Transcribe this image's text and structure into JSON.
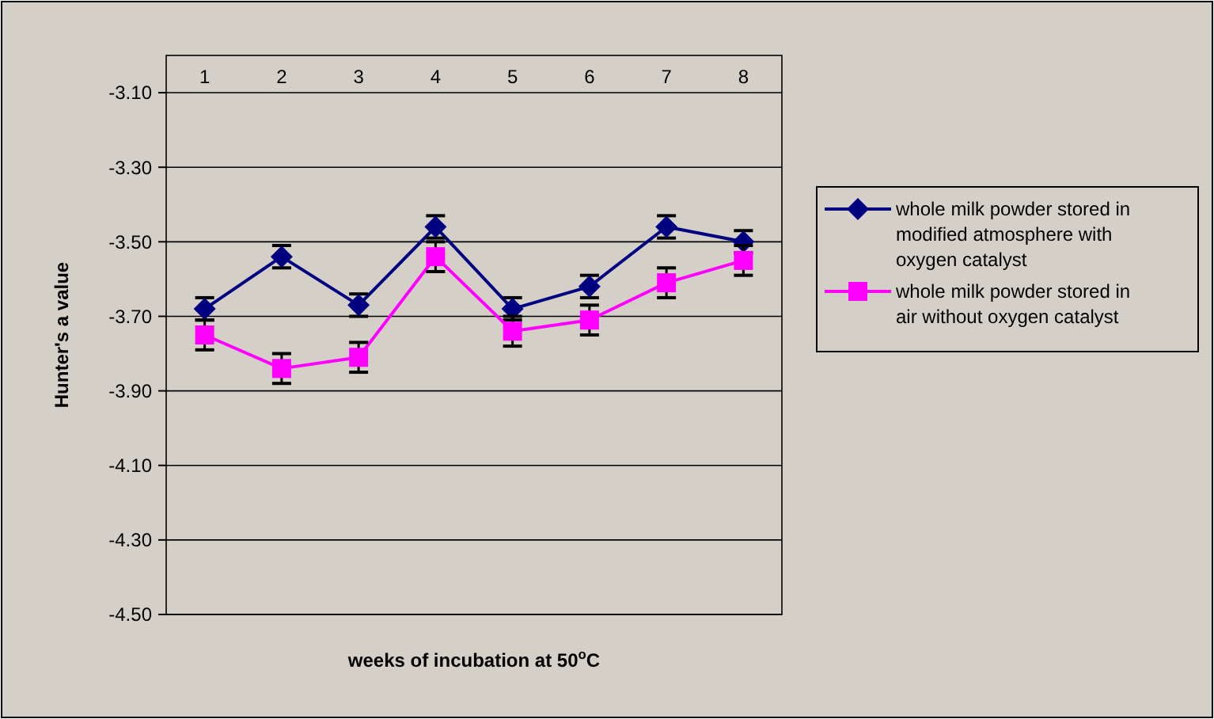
{
  "chart_data": {
    "type": "line",
    "xlabel": "weeks of incubation at 50$^{o}$C",
    "ylabel": "Hunter's a value",
    "categories": [
      "1",
      "2",
      "3",
      "4",
      "5",
      "6",
      "7",
      "8"
    ],
    "series": [
      {
        "name": "whole milk powder stored in modified atmosphere with oxygen catalyst",
        "color": "#000080",
        "marker": "diamond",
        "values": [
          -3.68,
          -3.54,
          -3.67,
          -3.46,
          -3.68,
          -3.62,
          -3.46,
          -3.5
        ],
        "errors": [
          0.03,
          0.03,
          0.03,
          0.03,
          0.03,
          0.03,
          0.03,
          0.03
        ]
      },
      {
        "name": "whole milk powder stored in air without oxygen catalyst",
        "color": "#ff00ff",
        "marker": "square",
        "values": [
          -3.75,
          -3.84,
          -3.81,
          -3.54,
          -3.74,
          -3.71,
          -3.61,
          -3.55
        ],
        "errors": [
          0.04,
          0.04,
          0.04,
          0.04,
          0.04,
          0.04,
          0.04,
          0.04
        ]
      }
    ],
    "ylim": [
      -4.5,
      -3.0
    ],
    "yticks": [
      {
        "value": -4.5,
        "label": "-4.50"
      },
      {
        "value": -4.3,
        "label": "-4.30"
      },
      {
        "value": -4.1,
        "label": "-4.10"
      },
      {
        "value": -3.9,
        "label": "-3.90"
      },
      {
        "value": -3.7,
        "label": "-3.70"
      },
      {
        "value": -3.5,
        "label": "-3.50"
      },
      {
        "value": -3.3,
        "label": "-3.30"
      },
      {
        "value": -3.1,
        "label": "-3.10"
      }
    ],
    "grid": "y",
    "legend": "right"
  }
}
